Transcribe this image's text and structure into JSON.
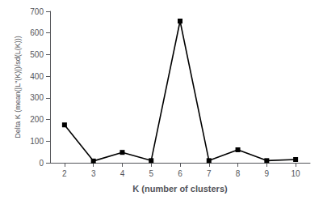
{
  "chart_data": {
    "type": "line",
    "x": [
      2,
      3,
      4,
      5,
      6,
      7,
      8,
      9,
      10
    ],
    "values": [
      175,
      8,
      48,
      10,
      655,
      10,
      60,
      10,
      15
    ],
    "xlabel": "K (number of clusters)",
    "ylabel": "Delta K (mean(|Lʺ(K)|)/sd(L(K)))",
    "xlim": [
      1.5,
      10.5
    ],
    "ylim": [
      0,
      700
    ],
    "xticks": [
      2,
      3,
      4,
      5,
      6,
      7,
      8,
      9,
      10
    ],
    "yticks": [
      0,
      100,
      200,
      300,
      400,
      500,
      600,
      700
    ],
    "color": "#000000",
    "marker": "square",
    "grid": false
  }
}
